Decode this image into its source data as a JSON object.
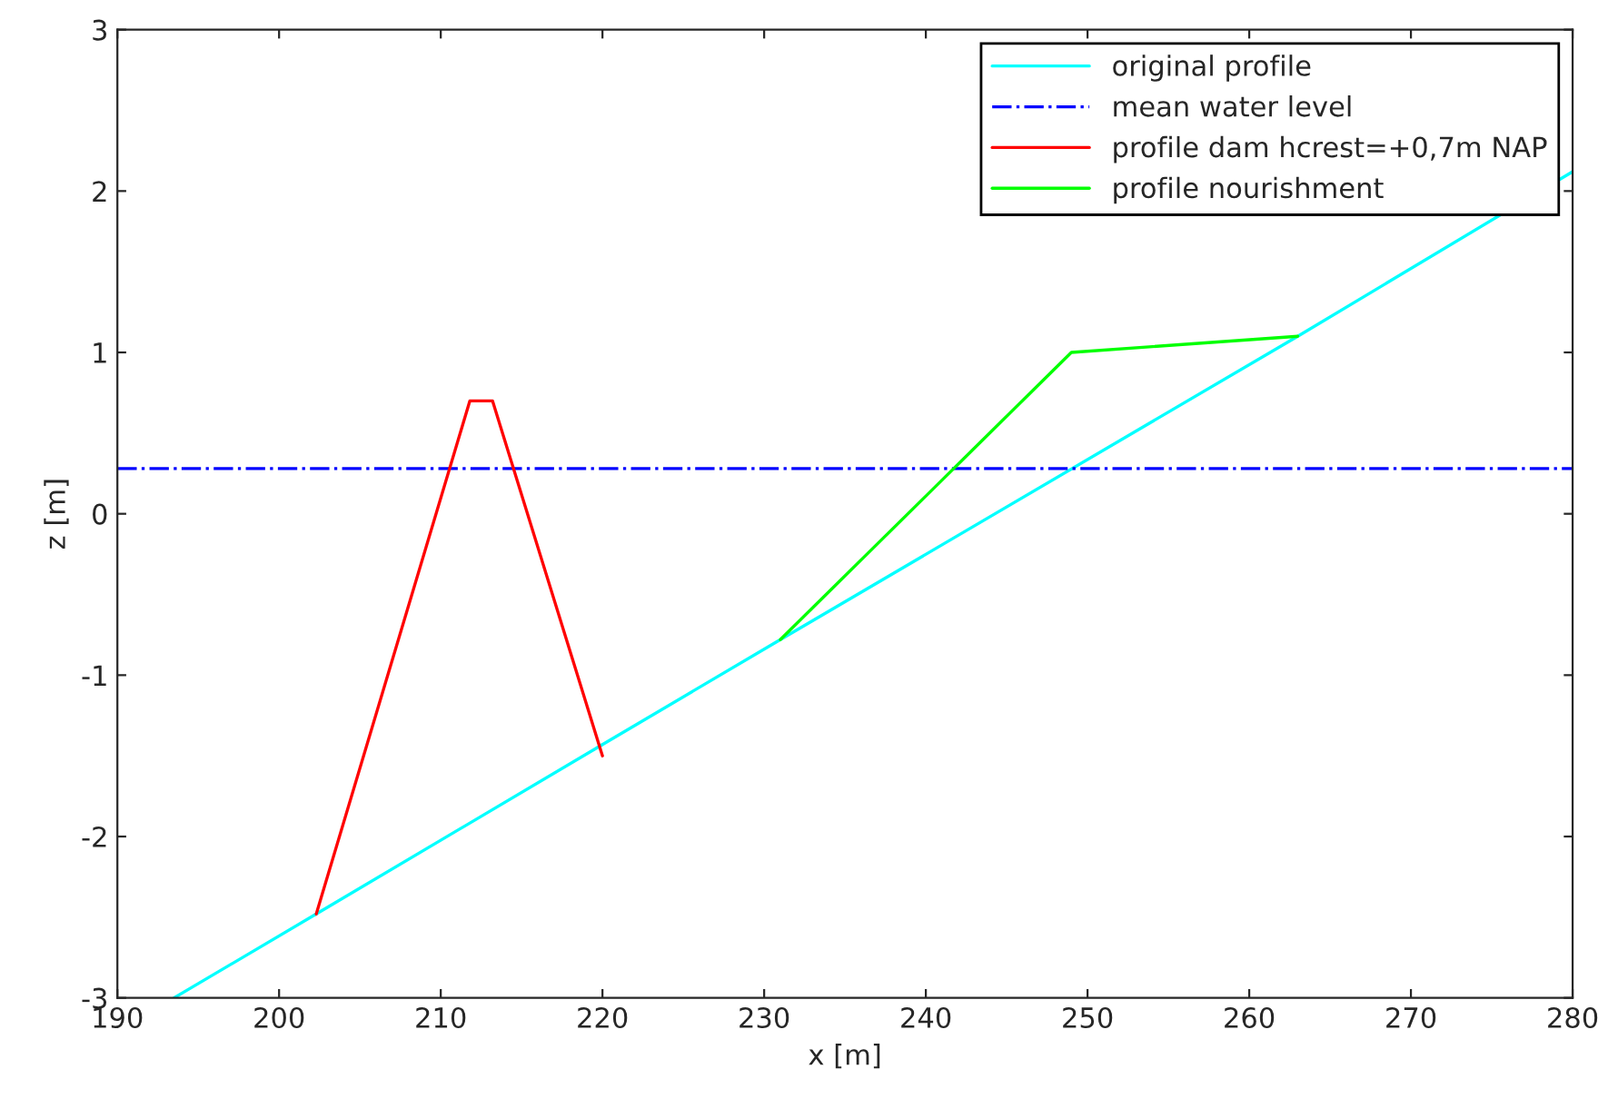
{
  "chart_data": {
    "type": "line",
    "xlabel": "x [m]",
    "ylabel": "z [m]",
    "xlim": [
      190,
      280
    ],
    "ylim": [
      -3,
      3
    ],
    "xticks": [
      190,
      200,
      210,
      220,
      230,
      240,
      250,
      260,
      270,
      280
    ],
    "yticks": [
      -3,
      -2,
      -1,
      0,
      1,
      2,
      3
    ],
    "grid": false,
    "legend": "top right",
    "marker": "none",
    "series": [
      {
        "name": "original profile",
        "color": "#00ffff",
        "x": [
          193.5,
          202.3,
          220,
          231,
          263,
          280
        ],
        "values": [
          -3,
          -2.48,
          -1.43,
          -0.78,
          1.1,
          2.12
        ]
      },
      {
        "name": "mean water level",
        "color": "#0000ff",
        "line_style": "dashdot",
        "x": [
          190,
          280
        ],
        "values": [
          0.28,
          0.28
        ]
      },
      {
        "name": "profile dam hcrest=+0,7m NAP",
        "color": "#ff0000",
        "x": [
          202.3,
          211.8,
          213.2,
          220
        ],
        "values": [
          -2.48,
          0.7,
          0.7,
          -1.5
        ]
      },
      {
        "name": "profile nourishment",
        "color": "#00ff00",
        "x": [
          231,
          249,
          263
        ],
        "values": [
          -0.78,
          1.0,
          1.1
        ]
      }
    ]
  }
}
